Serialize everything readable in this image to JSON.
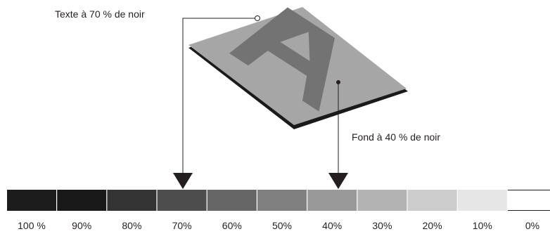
{
  "annotations": {
    "text_label": "Texte à 70 % de noir",
    "background_label": "Fond à 40 % de noir"
  },
  "scale": {
    "steps": [
      {
        "label": "100 %",
        "percent": 100
      },
      {
        "label": "90%",
        "percent": 90
      },
      {
        "label": "80%",
        "percent": 80
      },
      {
        "label": "70%",
        "percent": 70
      },
      {
        "label": "60%",
        "percent": 60
      },
      {
        "label": "50%",
        "percent": 50
      },
      {
        "label": "40%",
        "percent": 40
      },
      {
        "label": "30%",
        "percent": 30
      },
      {
        "label": "20%",
        "percent": 20
      },
      {
        "label": "10%",
        "percent": 10
      },
      {
        "label": "0%",
        "percent": 0
      }
    ]
  },
  "colors": {
    "ink": "#231f20",
    "letter_fill": "#737373",
    "board_fill": "#a6a6a6",
    "board_edge": "#1a1a1a"
  }
}
